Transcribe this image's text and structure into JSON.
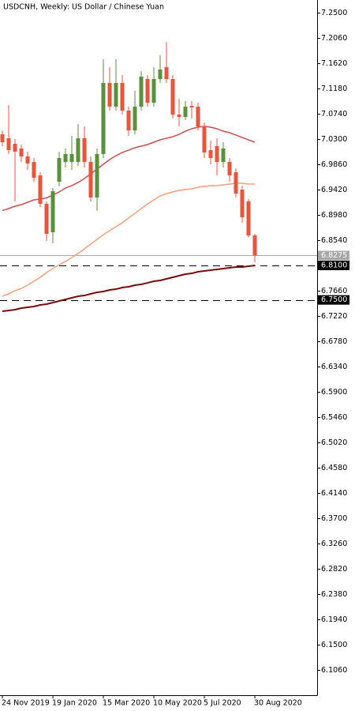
{
  "chart_data": {
    "type": "candlestick",
    "title": "USDCNH, Weekly:  US Dollar / Chinese Yuan",
    "categories": [
      "24 Nov 2019",
      null,
      null,
      null,
      null,
      null,
      null,
      null,
      "19 Jan 2020",
      null,
      null,
      null,
      null,
      null,
      null,
      null,
      "15 Mar 2020",
      null,
      null,
      null,
      null,
      null,
      null,
      null,
      "10 May 2020",
      null,
      null,
      null,
      null,
      null,
      null,
      null,
      "5 Jul 2020",
      null,
      null,
      null,
      null,
      null,
      null,
      null,
      "30 Aug 2020"
    ],
    "open": [
      7.0382,
      7.0314,
      7.0217,
      7.0135,
      6.9997,
      6.9901,
      6.9667,
      6.9172,
      6.8677,
      6.9557,
      6.9901,
      6.9901,
      6.9901,
      7.0314,
      6.9901,
      6.9282,
      7.0039,
      7.1276,
      7.0864,
      7.1276,
      7.0795,
      7.0451,
      7.0864,
      7.1345,
      7.0932,
      7.1345,
      7.1551,
      7.1345,
      7.0726,
      7.0685,
      7.0877,
      7.0864,
      7.052,
      7.0107,
      7.0176,
      6.9901,
      6.9901,
      6.9722,
      6.942,
      6.9214,
      6.8622
    ],
    "high": [
      7.0451,
      7.0891,
      7.03,
      7.0204,
      7.008,
      6.997,
      6.9722,
      6.9214,
      6.9447,
      7.008,
      7.0135,
      7.0355,
      7.0561,
      7.052,
      6.9997,
      7.0135,
      7.1689,
      7.1551,
      7.1689,
      7.1414,
      7.0864,
      7.1139,
      7.1482,
      7.1414,
      7.1551,
      7.1758,
      7.1991,
      7.1414,
      7.1001,
      7.096,
      7.096,
      7.0932,
      7.0589,
      7.0272,
      7.0314,
      7.0245,
      6.997,
      6.9791,
      6.9489,
      6.9255,
      6.865
    ],
    "low": [
      7.0176,
      7.0039,
      6.9214,
      6.9901,
      6.9764,
      6.9557,
      6.9117,
      6.8526,
      6.8485,
      6.9475,
      6.9805,
      6.9764,
      6.9832,
      6.9805,
      6.9214,
      6.9049,
      6.997,
      7.0795,
      7.0795,
      7.0726,
      7.0355,
      7.0382,
      7.0795,
      7.0864,
      7.0864,
      7.1276,
      7.1276,
      7.0657,
      7.052,
      7.063,
      7.0657,
      7.0451,
      6.997,
      6.986,
      6.9667,
      6.9805,
      6.9557,
      6.9282,
      6.8842,
      6.8595,
      6.8155
    ],
    "close": [
      7.0245,
      7.0107,
      7.008,
      6.9997,
      6.9874,
      6.9626,
      6.9172,
      6.865,
      6.9392,
      6.997,
      7.0039,
      7.0039,
      7.0314,
      6.9901,
      6.9282,
      7.0039,
      7.1276,
      7.0864,
      7.1276,
      7.0795,
      7.0451,
      7.0864,
      7.1386,
      7.0932,
      7.1345,
      7.151,
      7.1345,
      7.0726,
      7.0685,
      7.0864,
      7.085,
      7.052,
      7.0066,
      6.997,
      6.9901,
      7.0135,
      6.9667,
      6.9351,
      6.8939,
      6.8622,
      6.8275
    ],
    "up_color": "#5a8f3c",
    "down_color": "#e8553a",
    "moving_averages": [
      {
        "color": "#c8504e",
        "values": [
          6.9056,
          6.909,
          6.9131,
          6.9159,
          6.92,
          6.9241,
          6.9255,
          6.9276,
          6.9324,
          6.9379,
          6.9447,
          6.9489,
          6.9544,
          6.9612,
          6.9695,
          6.9777,
          6.986,
          6.9942,
          7.0011,
          7.0066,
          7.0107,
          7.0149,
          7.0176,
          7.0204,
          7.0245,
          7.0286,
          7.0314,
          7.0341,
          7.0382,
          7.0437,
          7.0479,
          7.0506,
          7.052,
          7.0506,
          7.0479,
          7.0437,
          7.041,
          7.0369,
          7.0327,
          7.0286,
          7.0245
        ]
      },
      {
        "color": "#f4a07a",
        "values": [
          6.7564,
          6.7605,
          6.766,
          6.7701,
          6.7756,
          6.7825,
          6.7894,
          6.7976,
          6.8045,
          6.8114,
          6.8169,
          6.8237,
          6.8306,
          6.8389,
          6.8471,
          6.8554,
          6.8636,
          6.8705,
          6.8774,
          6.8842,
          6.8925,
          6.9007,
          6.909,
          6.9172,
          6.9241,
          6.931,
          6.9351,
          6.9379,
          6.9406,
          6.942,
          6.9434,
          6.9461,
          6.9475,
          6.9489,
          6.9489,
          6.9502,
          6.9516,
          6.953,
          6.953,
          6.9516,
          6.9516
        ]
      },
      {
        "color": "#7a0a0a",
        "values": [
          6.7302,
          6.7316,
          6.733,
          6.7357,
          6.7371,
          6.7385,
          6.7412,
          6.7426,
          6.7454,
          6.7481,
          6.7509,
          6.7536,
          6.7564,
          6.7577,
          6.7605,
          6.7632,
          6.7646,
          6.7674,
          6.7687,
          6.7715,
          6.7729,
          6.7756,
          6.777,
          6.7797,
          6.7825,
          6.7839,
          6.7866,
          6.7894,
          6.7921,
          6.7949,
          6.7962,
          6.799,
          6.8004,
          6.8017,
          6.8031,
          6.8045,
          6.8059,
          6.8072,
          6.8072,
          6.8086,
          6.81
        ]
      }
    ],
    "current_price": 6.8275,
    "levels": [
      {
        "value": 6.81,
        "label": "6.8100"
      },
      {
        "value": 6.75,
        "label": "6.7500"
      }
    ],
    "ylim": [
      6.062,
      7.272
    ],
    "yticks": [
      {
        "value": 7.25,
        "label": "7.2500"
      },
      {
        "value": 7.206,
        "label": "7.2060"
      },
      {
        "value": 7.162,
        "label": "7.1620"
      },
      {
        "value": 7.118,
        "label": "7.1180"
      },
      {
        "value": 7.074,
        "label": "7.0740"
      },
      {
        "value": 7.03,
        "label": "7.0300"
      },
      {
        "value": 6.986,
        "label": "6.9860"
      },
      {
        "value": 6.942,
        "label": "6.9420"
      },
      {
        "value": 6.898,
        "label": "6.8980"
      },
      {
        "value": 6.854,
        "label": "6.8540"
      },
      {
        "value": 6.766,
        "label": "6.7660"
      },
      {
        "value": 6.722,
        "label": "6.7220"
      },
      {
        "value": 6.678,
        "label": "6.6780"
      },
      {
        "value": 6.634,
        "label": "6.6340"
      },
      {
        "value": 6.59,
        "label": "6.5900"
      },
      {
        "value": 6.546,
        "label": "6.5460"
      },
      {
        "value": 6.502,
        "label": "6.5020"
      },
      {
        "value": 6.458,
        "label": "6.4580"
      },
      {
        "value": 6.414,
        "label": "6.4140"
      },
      {
        "value": 6.37,
        "label": "6.3700"
      },
      {
        "value": 6.326,
        "label": "6.3260"
      },
      {
        "value": 6.282,
        "label": "6.2820"
      },
      {
        "value": 6.238,
        "label": "6.2380"
      },
      {
        "value": 6.194,
        "label": "6.1940"
      },
      {
        "value": 6.15,
        "label": "6.1500"
      },
      {
        "value": 6.106,
        "label": "6.1060"
      }
    ]
  }
}
